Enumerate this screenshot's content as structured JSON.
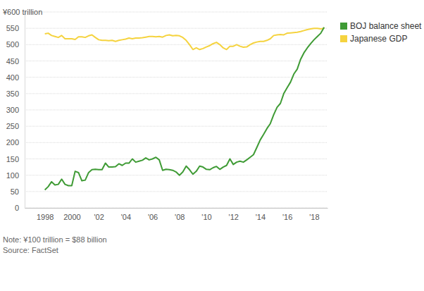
{
  "chart_data": {
    "type": "line",
    "x": [
      1998,
      1998.25,
      1998.5,
      1998.75,
      1999,
      1999.25,
      1999.5,
      1999.75,
      2000,
      2000.25,
      2000.5,
      2000.75,
      2001,
      2001.25,
      2001.5,
      2001.75,
      2002,
      2002.25,
      2002.5,
      2002.75,
      2003,
      2003.25,
      2003.5,
      2003.75,
      2004,
      2004.25,
      2004.5,
      2004.75,
      2005,
      2005.25,
      2005.5,
      2005.75,
      2006,
      2006.25,
      2006.5,
      2006.75,
      2007,
      2007.25,
      2007.5,
      2007.75,
      2008,
      2008.25,
      2008.5,
      2008.75,
      2009,
      2009.25,
      2009.5,
      2009.75,
      2010,
      2010.25,
      2010.5,
      2010.75,
      2011,
      2011.25,
      2011.5,
      2011.75,
      2012,
      2012.25,
      2012.5,
      2012.75,
      2013,
      2013.25,
      2013.5,
      2013.75,
      2014,
      2014.25,
      2014.5,
      2014.75,
      2015,
      2015.25,
      2015.5,
      2015.75,
      2016,
      2016.25,
      2016.5,
      2016.75,
      2017,
      2017.25,
      2017.5,
      2017.75,
      2018,
      2018.25,
      2018.5,
      2018.75
    ],
    "series": [
      {
        "name": "BOJ balance sheet",
        "color": "#3f9b35",
        "line_style": "solid",
        "values": [
          55,
          65,
          80,
          70,
          72,
          88,
          72,
          68,
          68,
          112,
          108,
          83,
          85,
          108,
          117,
          118,
          117,
          117,
          137,
          125,
          125,
          126,
          135,
          130,
          137,
          137,
          150,
          140,
          143,
          146,
          153,
          147,
          150,
          155,
          147,
          115,
          118,
          117,
          115,
          110,
          100,
          110,
          128,
          117,
          103,
          112,
          128,
          125,
          118,
          117,
          123,
          127,
          118,
          125,
          130,
          150,
          133,
          140,
          143,
          140,
          147,
          155,
          163,
          185,
          208,
          225,
          243,
          258,
          285,
          308,
          320,
          350,
          368,
          385,
          410,
          425,
          455,
          475,
          490,
          503,
          515,
          525,
          535,
          553
        ]
      },
      {
        "name": "Japanese GDP",
        "color": "#f5d33f",
        "line_style": "solid",
        "values": [
          533,
          535,
          528,
          525,
          522,
          528,
          518,
          518,
          518,
          516,
          524,
          524,
          522,
          527,
          530,
          522,
          515,
          513,
          513,
          512,
          513,
          510,
          513,
          515,
          517,
          520,
          518,
          520,
          520,
          521,
          523,
          525,
          525,
          524,
          525,
          523,
          528,
          530,
          527,
          528,
          527,
          522,
          513,
          500,
          485,
          490,
          485,
          488,
          493,
          497,
          503,
          507,
          500,
          490,
          485,
          495,
          495,
          500,
          495,
          492,
          493,
          500,
          505,
          508,
          510,
          510,
          513,
          518,
          528,
          530,
          531,
          530,
          535,
          536,
          537,
          538,
          540,
          543,
          546,
          548,
          550,
          550,
          548,
          551
        ]
      }
    ],
    "xlim": [
      1996.5,
      2019
    ],
    "xticks": [
      1998,
      2000,
      {
        "value": 2002,
        "label": "'02"
      },
      {
        "value": 2004,
        "label": "'04"
      },
      {
        "value": 2006,
        "label": "'06"
      },
      {
        "value": 2008,
        "label": "'08"
      },
      {
        "value": 2010,
        "label": "'10"
      },
      {
        "value": 2012,
        "label": "'12"
      },
      {
        "value": 2014,
        "label": "'14"
      },
      {
        "value": 2016,
        "label": "'16"
      },
      {
        "value": 2018,
        "label": "'18"
      }
    ],
    "ylim": [
      0,
      600
    ],
    "yticks": [
      0,
      50,
      100,
      150,
      200,
      250,
      300,
      350,
      400,
      450,
      500,
      550,
      {
        "value": 600,
        "label": "¥600 trillion"
      }
    ],
    "grid": true,
    "legend": "right",
    "note": "Note: ¥100 trillion = $88 billion",
    "source": "Source: FactSet"
  }
}
